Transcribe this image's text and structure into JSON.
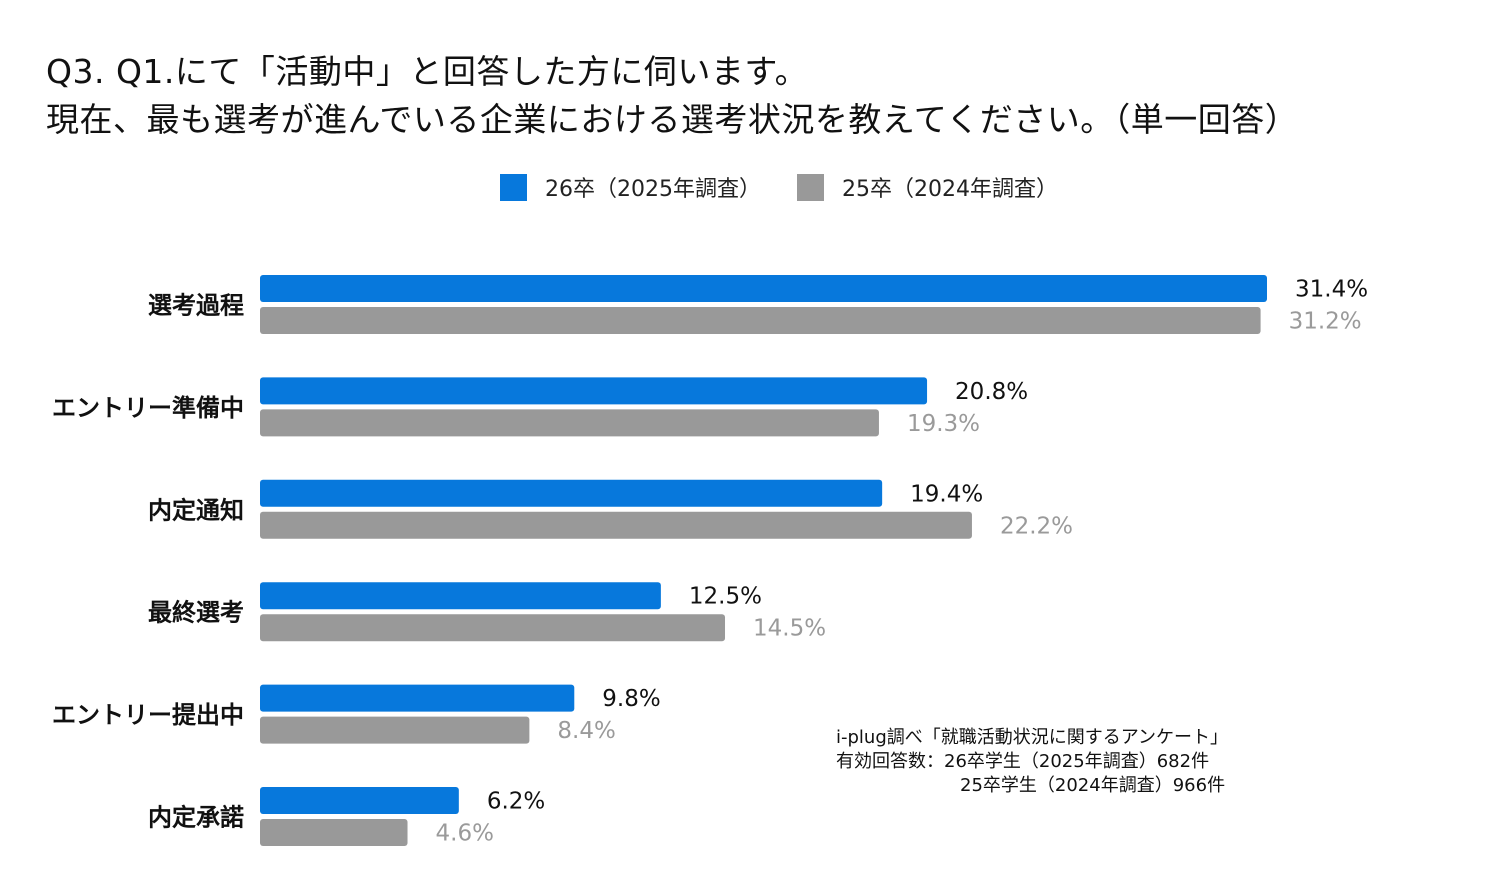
{
  "title": {
    "line1": "Q3. Q1.にて「活動中」と回答した方に伺います。",
    "line2": "現在、最も選考が進んでいる企業における選考状況を教えてください。（単一回答）"
  },
  "colors": {
    "series_26": "#0778DC",
    "series_25": "#999999",
    "label_26": "#111111",
    "label_25": "#9A9A9A"
  },
  "chart_data": {
    "type": "bar",
    "orientation": "horizontal",
    "categories": [
      "選考過程",
      "エントリー準備中",
      "内定通知",
      "最終選考",
      "エントリー提出中",
      "内定承諾"
    ],
    "series": [
      {
        "name": "26卒（2025年調査）",
        "values": [
          31.4,
          20.8,
          19.4,
          12.5,
          9.8,
          6.2
        ],
        "labels": [
          "31.4%",
          "20.8%",
          "19.4%",
          "12.5%",
          "9.8%",
          "6.2%"
        ]
      },
      {
        "name": "25卒（2024年調査）",
        "values": [
          31.2,
          19.3,
          22.2,
          14.5,
          8.4,
          4.6
        ],
        "labels": [
          "31.2%",
          "19.3%",
          "22.2%",
          "14.5%",
          "8.4%",
          "4.6%"
        ]
      }
    ],
    "unit": "%",
    "xlim": [
      0,
      31.4
    ],
    "grid": false,
    "legend_position": "top-center"
  },
  "source": {
    "line1": "i-plug調べ「就職活動状況に関するアンケート」",
    "line2": "有効回答数：26卒学生（2025年調査）682件",
    "line3": "25卒学生（2024年調査）966件"
  }
}
